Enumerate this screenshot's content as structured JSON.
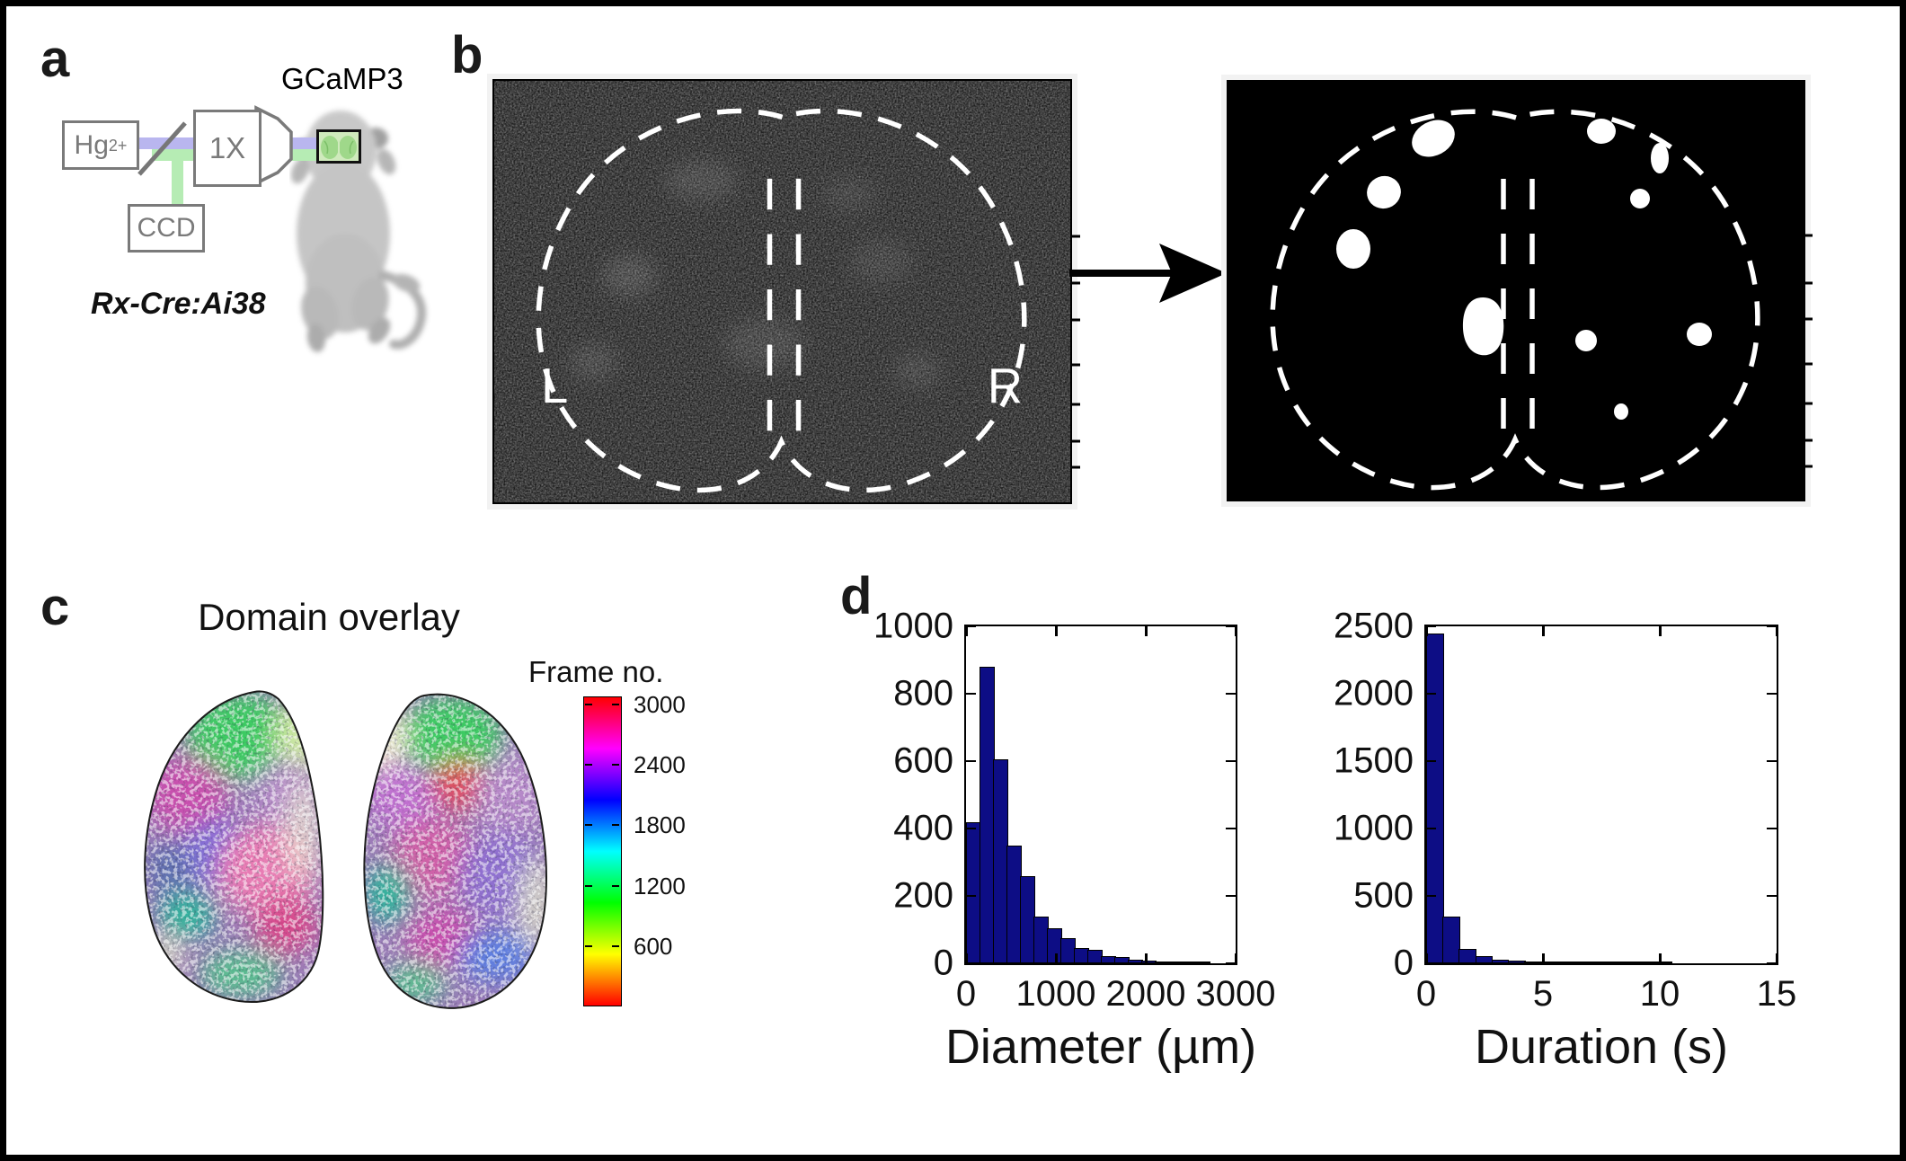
{
  "panel_a": {
    "label": "a",
    "gcamp3_label": "GCaMP3",
    "lamp_label_base": "Hg",
    "lamp_label_sup": "2+",
    "objective_label": "1X",
    "camera_label": "CCD",
    "mouse_genotype": "Rx-Cre:Ai38",
    "colors": {
      "gcamp_green": "#2ebd2e",
      "excitation_beam_blue": "#b9b6ef",
      "emission_beam_green": "#b6ecb4",
      "diagram_gray": "#7a7a7a"
    }
  },
  "panel_b": {
    "label": "b",
    "left_hemisphere_label": "L",
    "right_hemisphere_label": "R"
  },
  "panel_c": {
    "label": "c",
    "title": "Domain overlay",
    "colorbar": {
      "title": "Frame no.",
      "tick_labels": [
        "3000",
        "2400",
        "1800",
        "1200",
        "600"
      ],
      "tick_values": [
        3000,
        2400,
        1800,
        1200,
        600
      ],
      "value_max": 3080,
      "gradient_top_to_bottom": [
        "#ff0000",
        "#ff00ff",
        "#0000ff",
        "#00ffff",
        "#00ff00",
        "#ffff00",
        "#ff0000"
      ]
    }
  },
  "panel_d": {
    "label": "d"
  },
  "chart_data": [
    {
      "type": "bar",
      "name": "domain-diameter-histogram",
      "title": "",
      "xlabel": "Diameter (µm)",
      "ylabel": "",
      "xlim": [
        0,
        3000
      ],
      "ylim": [
        0,
        1000
      ],
      "x_ticks": [
        0,
        1000,
        2000,
        3000
      ],
      "y_ticks": [
        0,
        200,
        400,
        600,
        800,
        1000
      ],
      "bin_width": 150,
      "bin_start": 0,
      "counts": [
        420,
        880,
        605,
        350,
        260,
        140,
        105,
        75,
        45,
        40,
        22,
        18,
        10,
        8,
        5,
        3,
        2,
        2
      ],
      "bar_fill": "#0d0d85",
      "bar_edge": "#000000",
      "grid": false
    },
    {
      "type": "bar",
      "name": "domain-duration-histogram",
      "title": "",
      "xlabel": "Duration (s)",
      "ylabel": "",
      "xlim": [
        0,
        15
      ],
      "ylim": [
        0,
        2500
      ],
      "x_ticks": [
        0,
        5,
        10,
        15
      ],
      "y_ticks": [
        0,
        500,
        1000,
        1500,
        2000,
        2500
      ],
      "bin_width": 0.7,
      "bin_start": 0,
      "counts": [
        2450,
        350,
        110,
        55,
        25,
        18,
        15,
        6,
        4,
        3,
        3,
        2,
        2,
        1,
        2
      ],
      "bar_fill": "#0d0d85",
      "bar_edge": "#000000",
      "grid": false
    }
  ]
}
